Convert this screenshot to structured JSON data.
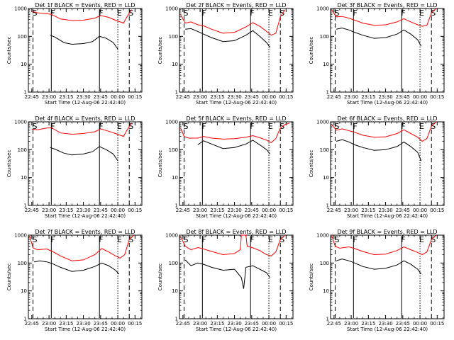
{
  "chart_data": [
    {
      "type": "line",
      "title": "Det 1f BLACK = Events, RED = LLD",
      "xlabel": "Start Time (12-Aug-06 22:42:40)",
      "ylabel": "Counts/sec",
      "y_scale": "log",
      "ylim": [
        1,
        1000
      ],
      "xlim": [
        "22:42",
        "00:21"
      ],
      "x_ticks": [
        "22:45",
        "23:00",
        "23:15",
        "23:30",
        "23:45",
        "00:00",
        "00:15"
      ],
      "y_ticks": [
        "1",
        "10",
        "100",
        "1000"
      ],
      "markers": [
        {
          "label": "S",
          "time": "22:46"
        },
        {
          "label": "F",
          "time": "23:02"
        },
        {
          "label": "F",
          "time": "23:44"
        },
        {
          "label": "E",
          "time": "00:00"
        },
        {
          "label": "S",
          "time": "00:10"
        }
      ],
      "series": [
        {
          "color": "#000000",
          "x": [
            "23:01",
            "23:05",
            "23:13",
            "23:20",
            "23:30",
            "23:38",
            "23:44",
            "23:50",
            "23:56",
            "00:00"
          ],
          "y": [
            110,
            95,
            60,
            52,
            55,
            65,
            100,
            85,
            60,
            35
          ]
        },
        {
          "color": "#ff0000",
          "x": [
            "22:45",
            "22:50",
            "22:58",
            "23:02",
            "23:10",
            "23:20",
            "23:30",
            "23:40",
            "23:45",
            "23:52",
            "23:58",
            "00:02",
            "00:05",
            "00:08",
            "00:12"
          ],
          "y": [
            800,
            700,
            650,
            620,
            420,
            370,
            380,
            450,
            560,
            480,
            380,
            330,
            300,
            500,
            900
          ]
        }
      ]
    },
    {
      "type": "line",
      "title": "Det 2f BLACK = Events, RED = LLD",
      "xlabel": "Start Time (12-Aug-06 22:42:40)",
      "ylabel": "Counts/sec",
      "y_scale": "log",
      "ylim": [
        1,
        1000
      ],
      "xlim": [
        "22:42",
        "00:21"
      ],
      "x_ticks": [
        "22:45",
        "23:00",
        "23:15",
        "23:30",
        "23:45",
        "00:00",
        "00:15"
      ],
      "y_ticks": [
        "1",
        "10",
        "100",
        "1000"
      ],
      "markers": [
        {
          "label": "S",
          "time": "22:46"
        },
        {
          "label": "F",
          "time": "23:02"
        },
        {
          "label": "F",
          "time": "23:44"
        },
        {
          "label": "E",
          "time": "00:00"
        },
        {
          "label": "S",
          "time": "00:10"
        }
      ],
      "series": [
        {
          "color": "#000000",
          "x": [
            "22:47",
            "22:52",
            "22:58",
            "23:03",
            "23:10",
            "23:20",
            "23:30",
            "23:40",
            "23:46",
            "23:52",
            "23:58",
            "00:01"
          ],
          "y": [
            180,
            190,
            150,
            120,
            90,
            65,
            70,
            110,
            160,
            100,
            60,
            40
          ]
        },
        {
          "color": "#ff0000",
          "x": [
            "22:43",
            "22:47",
            "22:52",
            "22:58",
            "23:03",
            "23:10",
            "23:20",
            "23:30",
            "23:40",
            "23:46",
            "23:52",
            "23:58",
            "00:02",
            "00:06",
            "00:10",
            "00:14"
          ],
          "y": [
            600,
            300,
            330,
            260,
            240,
            180,
            130,
            140,
            220,
            310,
            230,
            150,
            110,
            130,
            500,
            900
          ]
        }
      ]
    },
    {
      "type": "line",
      "title": "Det 3f BLACK = Events, RED = LLD",
      "xlabel": "Start Time (12-Aug-06 22:42:40)",
      "ylabel": "Counts/sec",
      "y_scale": "log",
      "ylim": [
        1,
        1000
      ],
      "xlim": [
        "22:42",
        "00:21"
      ],
      "x_ticks": [
        "22:45",
        "23:00",
        "23:15",
        "23:30",
        "23:45",
        "00:00",
        "00:15"
      ],
      "y_ticks": [
        "1",
        "10",
        "100",
        "1000"
      ],
      "markers": [
        {
          "label": "S",
          "time": "22:46"
        },
        {
          "label": "F",
          "time": "23:02"
        },
        {
          "label": "F",
          "time": "23:44"
        },
        {
          "label": "E",
          "time": "00:00"
        },
        {
          "label": "S",
          "time": "00:10"
        }
      ],
      "series": [
        {
          "color": "#000000",
          "x": [
            "22:47",
            "22:52",
            "22:58",
            "23:03",
            "23:10",
            "23:20",
            "23:30",
            "23:40",
            "23:46",
            "23:52",
            "23:58",
            "00:01"
          ],
          "y": [
            180,
            200,
            170,
            140,
            110,
            85,
            90,
            120,
            170,
            120,
            75,
            45
          ]
        },
        {
          "color": "#ff0000",
          "x": [
            "22:43",
            "22:47",
            "22:52",
            "22:58",
            "23:03",
            "23:10",
            "23:20",
            "23:30",
            "23:40",
            "23:46",
            "23:52",
            "23:58",
            "00:02",
            "00:06",
            "00:10",
            "00:14"
          ],
          "y": [
            900,
            500,
            520,
            450,
            380,
            300,
            250,
            260,
            330,
            430,
            330,
            260,
            230,
            250,
            700,
            1000
          ]
        }
      ]
    },
    {
      "type": "line",
      "title": "Det 4f BLACK = Events, RED = LLD",
      "xlabel": "Start Time (12-Aug-06 22:42:40)",
      "ylabel": "Counts/sec",
      "y_scale": "log",
      "ylim": [
        1,
        1000
      ],
      "xlim": [
        "22:42",
        "00:21"
      ],
      "x_ticks": [
        "22:45",
        "23:00",
        "23:15",
        "23:30",
        "23:45",
        "00:00",
        "00:15"
      ],
      "y_ticks": [
        "1",
        "10",
        "100",
        "1000"
      ],
      "markers": [
        {
          "label": "S",
          "time": "22:46"
        },
        {
          "label": "F",
          "time": "23:02"
        },
        {
          "label": "F",
          "time": "23:44"
        },
        {
          "label": "E",
          "time": "00:00"
        },
        {
          "label": "S",
          "time": "00:10"
        }
      ],
      "series": [
        {
          "color": "#000000",
          "x": [
            "23:01",
            "23:05",
            "23:13",
            "23:20",
            "23:30",
            "23:38",
            "23:44",
            "23:50",
            "23:56",
            "00:00"
          ],
          "y": [
            120,
            105,
            75,
            65,
            70,
            85,
            130,
            100,
            70,
            40
          ]
        },
        {
          "color": "#ff0000",
          "x": [
            "22:45",
            "22:50",
            "22:58",
            "23:02",
            "23:10",
            "23:20",
            "23:30",
            "23:40",
            "23:45",
            "23:52",
            "23:58",
            "00:02",
            "00:05",
            "00:08",
            "00:12"
          ],
          "y": [
            550,
            520,
            600,
            620,
            400,
            360,
            380,
            440,
            560,
            460,
            380,
            330,
            300,
            500,
            900
          ]
        }
      ]
    },
    {
      "type": "line",
      "title": "Det 5f BLACK = Events, RED = LLD",
      "xlabel": "Start Time (12-Aug-06 22:42:40)",
      "ylabel": "Counts/sec",
      "y_scale": "log",
      "ylim": [
        1,
        1000
      ],
      "xlim": [
        "22:42",
        "00:21"
      ],
      "x_ticks": [
        "22:45",
        "23:00",
        "23:15",
        "23:30",
        "23:45",
        "00:00",
        "00:15"
      ],
      "y_ticks": [
        "1",
        "10",
        "100",
        "1000"
      ],
      "markers": [
        {
          "label": "S",
          "time": "22:46"
        },
        {
          "label": "F",
          "time": "23:02"
        },
        {
          "label": "F",
          "time": "23:44"
        },
        {
          "label": "E",
          "time": "00:00"
        },
        {
          "label": "S",
          "time": "00:10"
        }
      ],
      "series": [
        {
          "color": "#000000",
          "x": [
            "22:58",
            "23:03",
            "23:10",
            "23:20",
            "23:30",
            "23:40",
            "23:46",
            "23:52",
            "23:58",
            "00:01"
          ],
          "y": [
            150,
            210,
            160,
            110,
            120,
            160,
            220,
            150,
            100,
            70
          ]
        },
        {
          "color": "#ff0000",
          "x": [
            "22:43",
            "22:46",
            "22:50",
            "22:58",
            "23:03",
            "23:10",
            "23:20",
            "23:30",
            "23:40",
            "23:46",
            "23:52",
            "23:58",
            "00:02",
            "00:06",
            "00:10",
            "00:14",
            "00:18"
          ],
          "y": [
            600,
            300,
            260,
            260,
            300,
            260,
            240,
            250,
            280,
            320,
            270,
            220,
            180,
            250,
            600,
            800,
            900
          ]
        }
      ]
    },
    {
      "type": "line",
      "title": "Det 6f BLACK = Events, RED = LLD",
      "xlabel": "Start Time (12-Aug-06 22:42:40)",
      "ylabel": "Counts/sec",
      "y_scale": "log",
      "ylim": [
        1,
        1000
      ],
      "xlim": [
        "22:42",
        "00:21"
      ],
      "x_ticks": [
        "22:45",
        "23:00",
        "23:15",
        "23:30",
        "23:45",
        "00:00",
        "00:15"
      ],
      "y_ticks": [
        "1",
        "10",
        "100",
        "1000"
      ],
      "markers": [
        {
          "label": "S",
          "time": "22:46"
        },
        {
          "label": "F",
          "time": "23:02"
        },
        {
          "label": "F",
          "time": "23:44"
        },
        {
          "label": "E",
          "time": "00:00"
        },
        {
          "label": "S",
          "time": "00:10"
        }
      ],
      "series": [
        {
          "color": "#000000",
          "x": [
            "22:47",
            "22:52",
            "22:58",
            "23:03",
            "23:10",
            "23:20",
            "23:30",
            "23:40",
            "23:46",
            "23:52",
            "23:58",
            "00:01"
          ],
          "y": [
            200,
            230,
            190,
            150,
            120,
            95,
            100,
            130,
            190,
            130,
            80,
            40
          ]
        },
        {
          "color": "#ff0000",
          "x": [
            "22:43",
            "22:47",
            "22:52",
            "22:58",
            "23:03",
            "23:10",
            "23:20",
            "23:30",
            "23:40",
            "23:46",
            "23:52",
            "23:58",
            "00:02",
            "00:06",
            "00:10",
            "00:14"
          ],
          "y": [
            800,
            500,
            560,
            480,
            420,
            330,
            280,
            290,
            380,
            520,
            380,
            280,
            200,
            250,
            700,
            1000
          ]
        }
      ]
    },
    {
      "type": "line",
      "title": "Det 7f BLACK = Events, RED = LLD",
      "xlabel": "Start Time (12-Aug-06 22:42:40)",
      "ylabel": "Counts/sec",
      "y_scale": "log",
      "ylim": [
        1,
        1000
      ],
      "xlim": [
        "22:42",
        "00:21"
      ],
      "x_ticks": [
        "22:45",
        "23:00",
        "23:15",
        "23:30",
        "23:45",
        "00:00",
        "00:15"
      ],
      "y_ticks": [
        "1",
        "10",
        "100",
        "1000"
      ],
      "markers": [
        {
          "label": "S",
          "time": "22:46"
        },
        {
          "label": "F",
          "time": "23:02"
        },
        {
          "label": "F",
          "time": "23:44"
        },
        {
          "label": "E",
          "time": "00:00"
        },
        {
          "label": "S",
          "time": "00:10"
        }
      ],
      "series": [
        {
          "color": "#000000",
          "x": [
            "22:47",
            "22:52",
            "22:58",
            "23:03",
            "23:10",
            "23:20",
            "23:30",
            "23:40",
            "23:46",
            "23:52",
            "23:58",
            "00:01"
          ],
          "y": [
            110,
            120,
            110,
            95,
            70,
            50,
            55,
            75,
            100,
            80,
            55,
            40
          ]
        },
        {
          "color": "#ff0000",
          "x": [
            "22:43",
            "22:46",
            "22:50",
            "22:58",
            "23:03",
            "23:10",
            "23:20",
            "23:30",
            "23:40",
            "23:46",
            "23:52",
            "23:58",
            "00:02",
            "00:06",
            "00:10",
            "00:14"
          ],
          "y": [
            1000,
            350,
            300,
            320,
            260,
            180,
            120,
            130,
            200,
            330,
            250,
            180,
            150,
            200,
            700,
            1000
          ]
        }
      ]
    },
    {
      "type": "line",
      "title": "Det 8f BLACK = Events, RED = LLD",
      "xlabel": "Start Time (12-Aug-06 22:42:40)",
      "ylabel": "Counts/sec",
      "y_scale": "log",
      "ylim": [
        1,
        1000
      ],
      "xlim": [
        "22:42",
        "00:21"
      ],
      "x_ticks": [
        "22:45",
        "23:00",
        "23:15",
        "23:30",
        "23:45",
        "00:00",
        "00:15"
      ],
      "y_ticks": [
        "1",
        "10",
        "100",
        "1000"
      ],
      "markers": [
        {
          "label": "S",
          "time": "22:46"
        },
        {
          "label": "F",
          "time": "23:02"
        },
        {
          "label": "F",
          "time": "23:44"
        },
        {
          "label": "E",
          "time": "00:00"
        },
        {
          "label": "S",
          "time": "00:10"
        }
      ],
      "series": [
        {
          "color": "#000000",
          "x": [
            "22:47",
            "22:52",
            "22:58",
            "23:03",
            "23:10",
            "23:20",
            "23:30",
            "23:36",
            "23:38",
            "23:40",
            "23:46",
            "23:52",
            "23:58",
            "00:01"
          ],
          "y": [
            130,
            80,
            100,
            90,
            70,
            55,
            60,
            30,
            12,
            70,
            80,
            60,
            45,
            30
          ]
        },
        {
          "color": "#ff0000",
          "x": [
            "22:43",
            "22:47",
            "22:52",
            "22:58",
            "23:03",
            "23:10",
            "23:20",
            "23:30",
            "23:35",
            "23:36",
            "23:40",
            "23:41",
            "23:46",
            "23:52",
            "23:58",
            "00:02",
            "00:06",
            "00:10",
            "00:14"
          ],
          "y": [
            900,
            400,
            300,
            360,
            320,
            260,
            200,
            220,
            300,
            1000,
            1000,
            400,
            350,
            280,
            200,
            180,
            250,
            700,
            1000
          ]
        }
      ]
    },
    {
      "type": "line",
      "title": "Det 9f BLACK = Events, RED = LLD",
      "xlabel": "Start Time (12-Aug-06 22:42:40)",
      "ylabel": "Counts/sec",
      "y_scale": "log",
      "ylim": [
        1,
        1000
      ],
      "xlim": [
        "22:42",
        "00:21"
      ],
      "x_ticks": [
        "22:45",
        "23:00",
        "23:15",
        "23:30",
        "23:45",
        "00:00",
        "00:15"
      ],
      "y_ticks": [
        "1",
        "10",
        "100",
        "1000"
      ],
      "markers": [
        {
          "label": "S",
          "time": "22:46"
        },
        {
          "label": "F",
          "time": "23:02"
        },
        {
          "label": "F",
          "time": "23:44"
        },
        {
          "label": "E",
          "time": "00:00"
        },
        {
          "label": "S",
          "time": "00:10"
        }
      ],
      "series": [
        {
          "color": "#000000",
          "x": [
            "22:47",
            "22:52",
            "22:58",
            "23:03",
            "23:10",
            "23:20",
            "23:30",
            "23:40",
            "23:46",
            "23:52",
            "23:58",
            "00:01"
          ],
          "y": [
            120,
            140,
            120,
            100,
            75,
            60,
            65,
            85,
            120,
            90,
            60,
            40
          ]
        },
        {
          "color": "#ff0000",
          "x": [
            "22:43",
            "22:46",
            "22:50",
            "22:58",
            "23:03",
            "23:10",
            "23:20",
            "23:30",
            "23:40",
            "23:46",
            "23:52",
            "23:58",
            "00:02",
            "00:06",
            "00:10",
            "00:14"
          ],
          "y": [
            1000,
            400,
            340,
            380,
            330,
            260,
            200,
            210,
            280,
            380,
            300,
            240,
            200,
            250,
            700,
            1000
          ]
        }
      ]
    }
  ]
}
